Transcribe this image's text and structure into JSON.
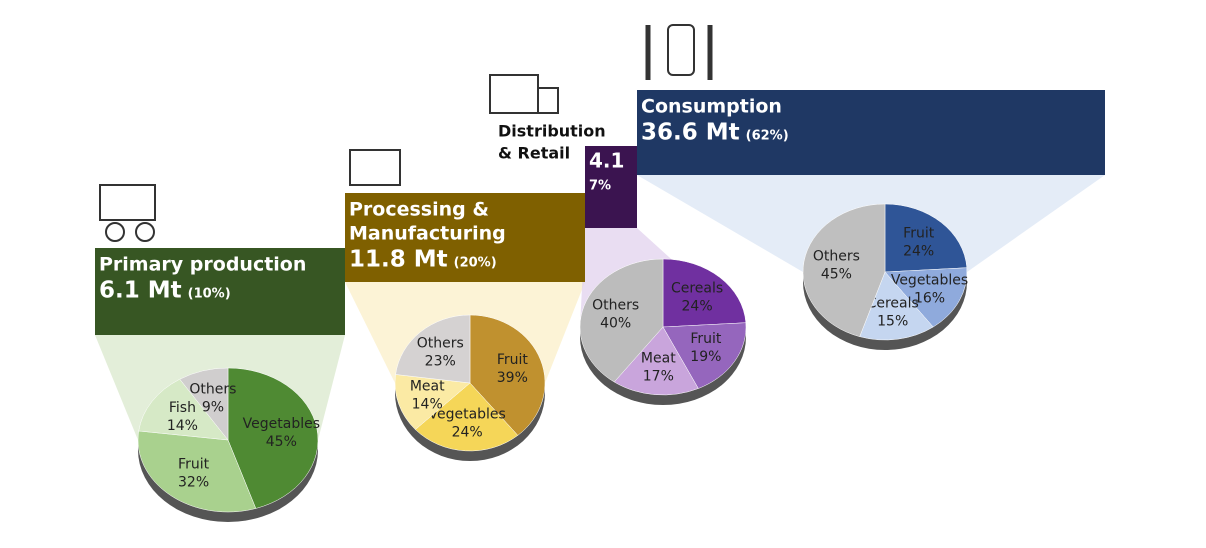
{
  "chart_data": [
    {
      "type": "pie",
      "title": [
        "Primary production"
      ],
      "total": {
        "value": 6.1,
        "label": "6.1 Mt"
      },
      "share": {
        "value": 10,
        "label": "(10%)"
      },
      "header_color": "#375623",
      "categories": [
        "Vegetables",
        "Fruit",
        "Fish",
        "Others"
      ],
      "values": [
        45,
        32,
        14,
        9
      ],
      "value_labels": [
        "45%",
        "32%",
        "14%",
        "9%"
      ],
      "colors": [
        "#4f8a33",
        "#a9d18e",
        "#d6e9c6",
        "#d0cece"
      ]
    },
    {
      "type": "pie",
      "title": [
        "Processing &",
        "Manufacturing"
      ],
      "total": {
        "value": 11.8,
        "label": "11.8 Mt"
      },
      "share": {
        "value": 20,
        "label": "(20%)"
      },
      "header_color": "#7f6000",
      "categories": [
        "Fruit",
        "Vegetables",
        "Meat",
        "Others"
      ],
      "values": [
        39,
        24,
        14,
        23
      ],
      "value_labels": [
        "39%",
        "24%",
        "14%",
        "23%"
      ],
      "colors": [
        "#c0912f",
        "#f5d658",
        "#fbeaa4",
        "#d5d2d2"
      ]
    },
    {
      "type": "pie",
      "title": [
        "Distribution",
        "& Retail"
      ],
      "total": {
        "value": 4.1,
        "label": "4.1"
      },
      "share": {
        "value": 7,
        "label": "7%"
      },
      "header_color": "#3b1450",
      "categories": [
        "Cereals",
        "Fruit",
        "Meat",
        "Others"
      ],
      "values": [
        24,
        19,
        17,
        40
      ],
      "value_labels": [
        "24%",
        "19%",
        "17%",
        "40%"
      ],
      "colors": [
        "#7030a0",
        "#9566bd",
        "#c9a5dc",
        "#bcbcbc"
      ]
    },
    {
      "type": "pie",
      "title": [
        "Consumption"
      ],
      "total": {
        "value": 36.6,
        "label": "36.6 Mt"
      },
      "share": {
        "value": 62,
        "label": "(62%)"
      },
      "header_color": "#1f3864",
      "categories": [
        "Fruit",
        "Vegetables",
        "Cereals",
        "Others"
      ],
      "values": [
        24,
        16,
        15,
        45
      ],
      "value_labels": [
        "24%",
        "16%",
        "15%",
        "45%"
      ],
      "colors": [
        "#2f5597",
        "#8faadc",
        "#c5d6f0",
        "#bfbfbf"
      ]
    }
  ]
}
